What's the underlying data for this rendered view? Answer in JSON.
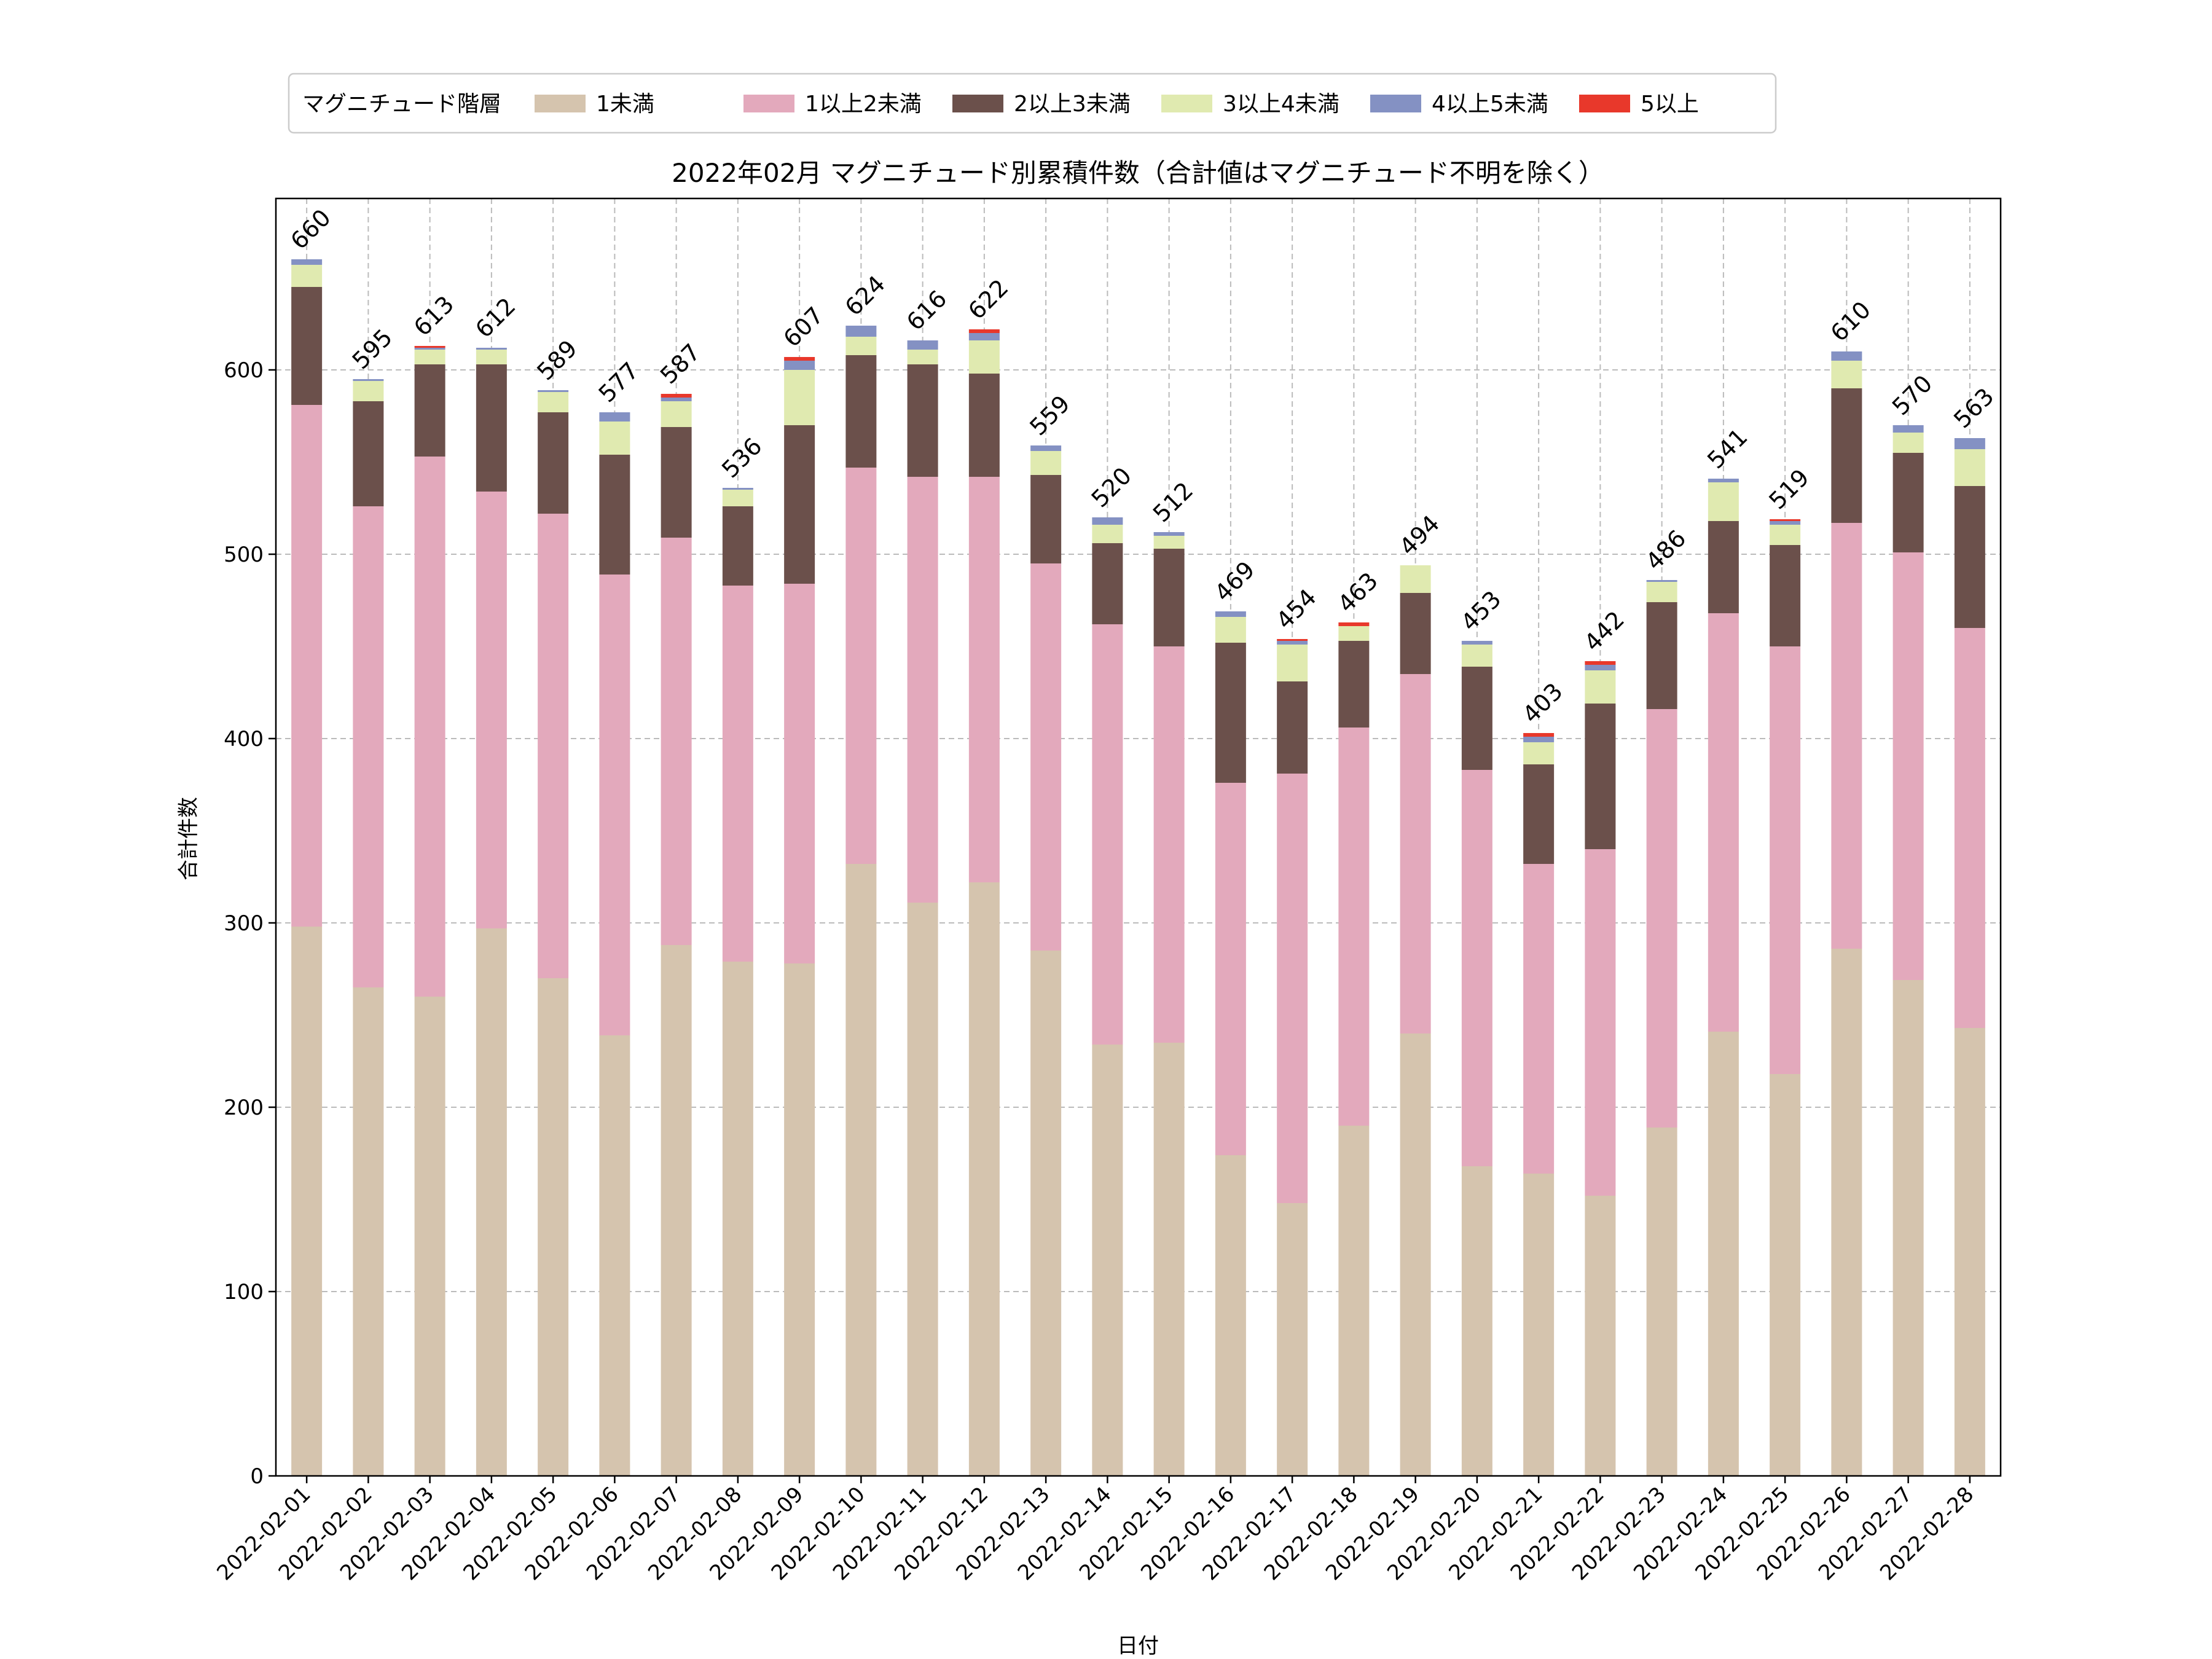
{
  "chart_data": {
    "type": "bar",
    "stacked": true,
    "title": "2022年02月 マグニチュード別累積件数（合計値はマグニチュード不明を除く）",
    "xlabel": "日付",
    "ylabel": "合計件数",
    "ylim": [
      0,
      693
    ],
    "yticks": [
      0,
      100,
      200,
      300,
      400,
      500,
      600
    ],
    "grid": true,
    "legend": {
      "title": "マグニチュード階層",
      "placement": "top-left"
    },
    "categories": [
      "2022-02-01",
      "2022-02-02",
      "2022-02-03",
      "2022-02-04",
      "2022-02-05",
      "2022-02-06",
      "2022-02-07",
      "2022-02-08",
      "2022-02-09",
      "2022-02-10",
      "2022-02-11",
      "2022-02-12",
      "2022-02-13",
      "2022-02-14",
      "2022-02-15",
      "2022-02-16",
      "2022-02-17",
      "2022-02-18",
      "2022-02-19",
      "2022-02-20",
      "2022-02-21",
      "2022-02-22",
      "2022-02-23",
      "2022-02-24",
      "2022-02-25",
      "2022-02-26",
      "2022-02-27",
      "2022-02-28"
    ],
    "series": [
      {
        "name": "1未満",
        "color": "#d5c4ae",
        "values": [
          298,
          265,
          260,
          297,
          270,
          239,
          288,
          279,
          278,
          332,
          311,
          322,
          285,
          234,
          235,
          174,
          148,
          190,
          240,
          168,
          164,
          152,
          189,
          241,
          218,
          286,
          269,
          243
        ]
      },
      {
        "name": "1以上2未満",
        "color": "#e3a9bc",
        "values": [
          283,
          261,
          293,
          237,
          252,
          250,
          221,
          204,
          206,
          215,
          231,
          220,
          210,
          228,
          215,
          202,
          233,
          216,
          195,
          215,
          168,
          188,
          227,
          227,
          232,
          231,
          232,
          217
        ]
      },
      {
        "name": "2以上3未満",
        "color": "#6b504b",
        "values": [
          64,
          57,
          50,
          69,
          55,
          65,
          60,
          43,
          86,
          61,
          61,
          56,
          48,
          44,
          53,
          76,
          50,
          47,
          44,
          56,
          54,
          79,
          58,
          50,
          55,
          73,
          54,
          77
        ]
      },
      {
        "name": "3以上4未満",
        "color": "#e0eab0",
        "values": [
          12,
          11,
          8,
          8,
          11,
          18,
          14,
          9,
          30,
          10,
          8,
          18,
          13,
          10,
          7,
          14,
          20,
          8,
          15,
          12,
          12,
          18,
          11,
          21,
          11,
          15,
          11,
          20
        ]
      },
      {
        "name": "4以上5未満",
        "color": "#8491c3",
        "values": [
          3,
          1,
          1,
          1,
          1,
          5,
          2,
          1,
          5,
          6,
          5,
          4,
          3,
          4,
          2,
          3,
          2,
          0,
          0,
          2,
          3,
          3,
          1,
          2,
          2,
          5,
          4,
          6
        ]
      },
      {
        "name": "5以上",
        "color": "#e8382b",
        "values": [
          0,
          0,
          1,
          0,
          0,
          0,
          2,
          0,
          2,
          0,
          0,
          2,
          0,
          0,
          0,
          0,
          1,
          2,
          0,
          0,
          2,
          2,
          0,
          0,
          1,
          0,
          0,
          0
        ]
      }
    ],
    "totals": [
      "660",
      "595",
      "613",
      "612",
      "589",
      "577",
      "587",
      "536",
      "607",
      "624",
      "616",
      "622",
      "559",
      "520",
      "512",
      "469",
      "454",
      "463",
      "494",
      "453",
      "403",
      "442",
      "486",
      "541",
      "519",
      "610",
      "570",
      "563"
    ]
  }
}
